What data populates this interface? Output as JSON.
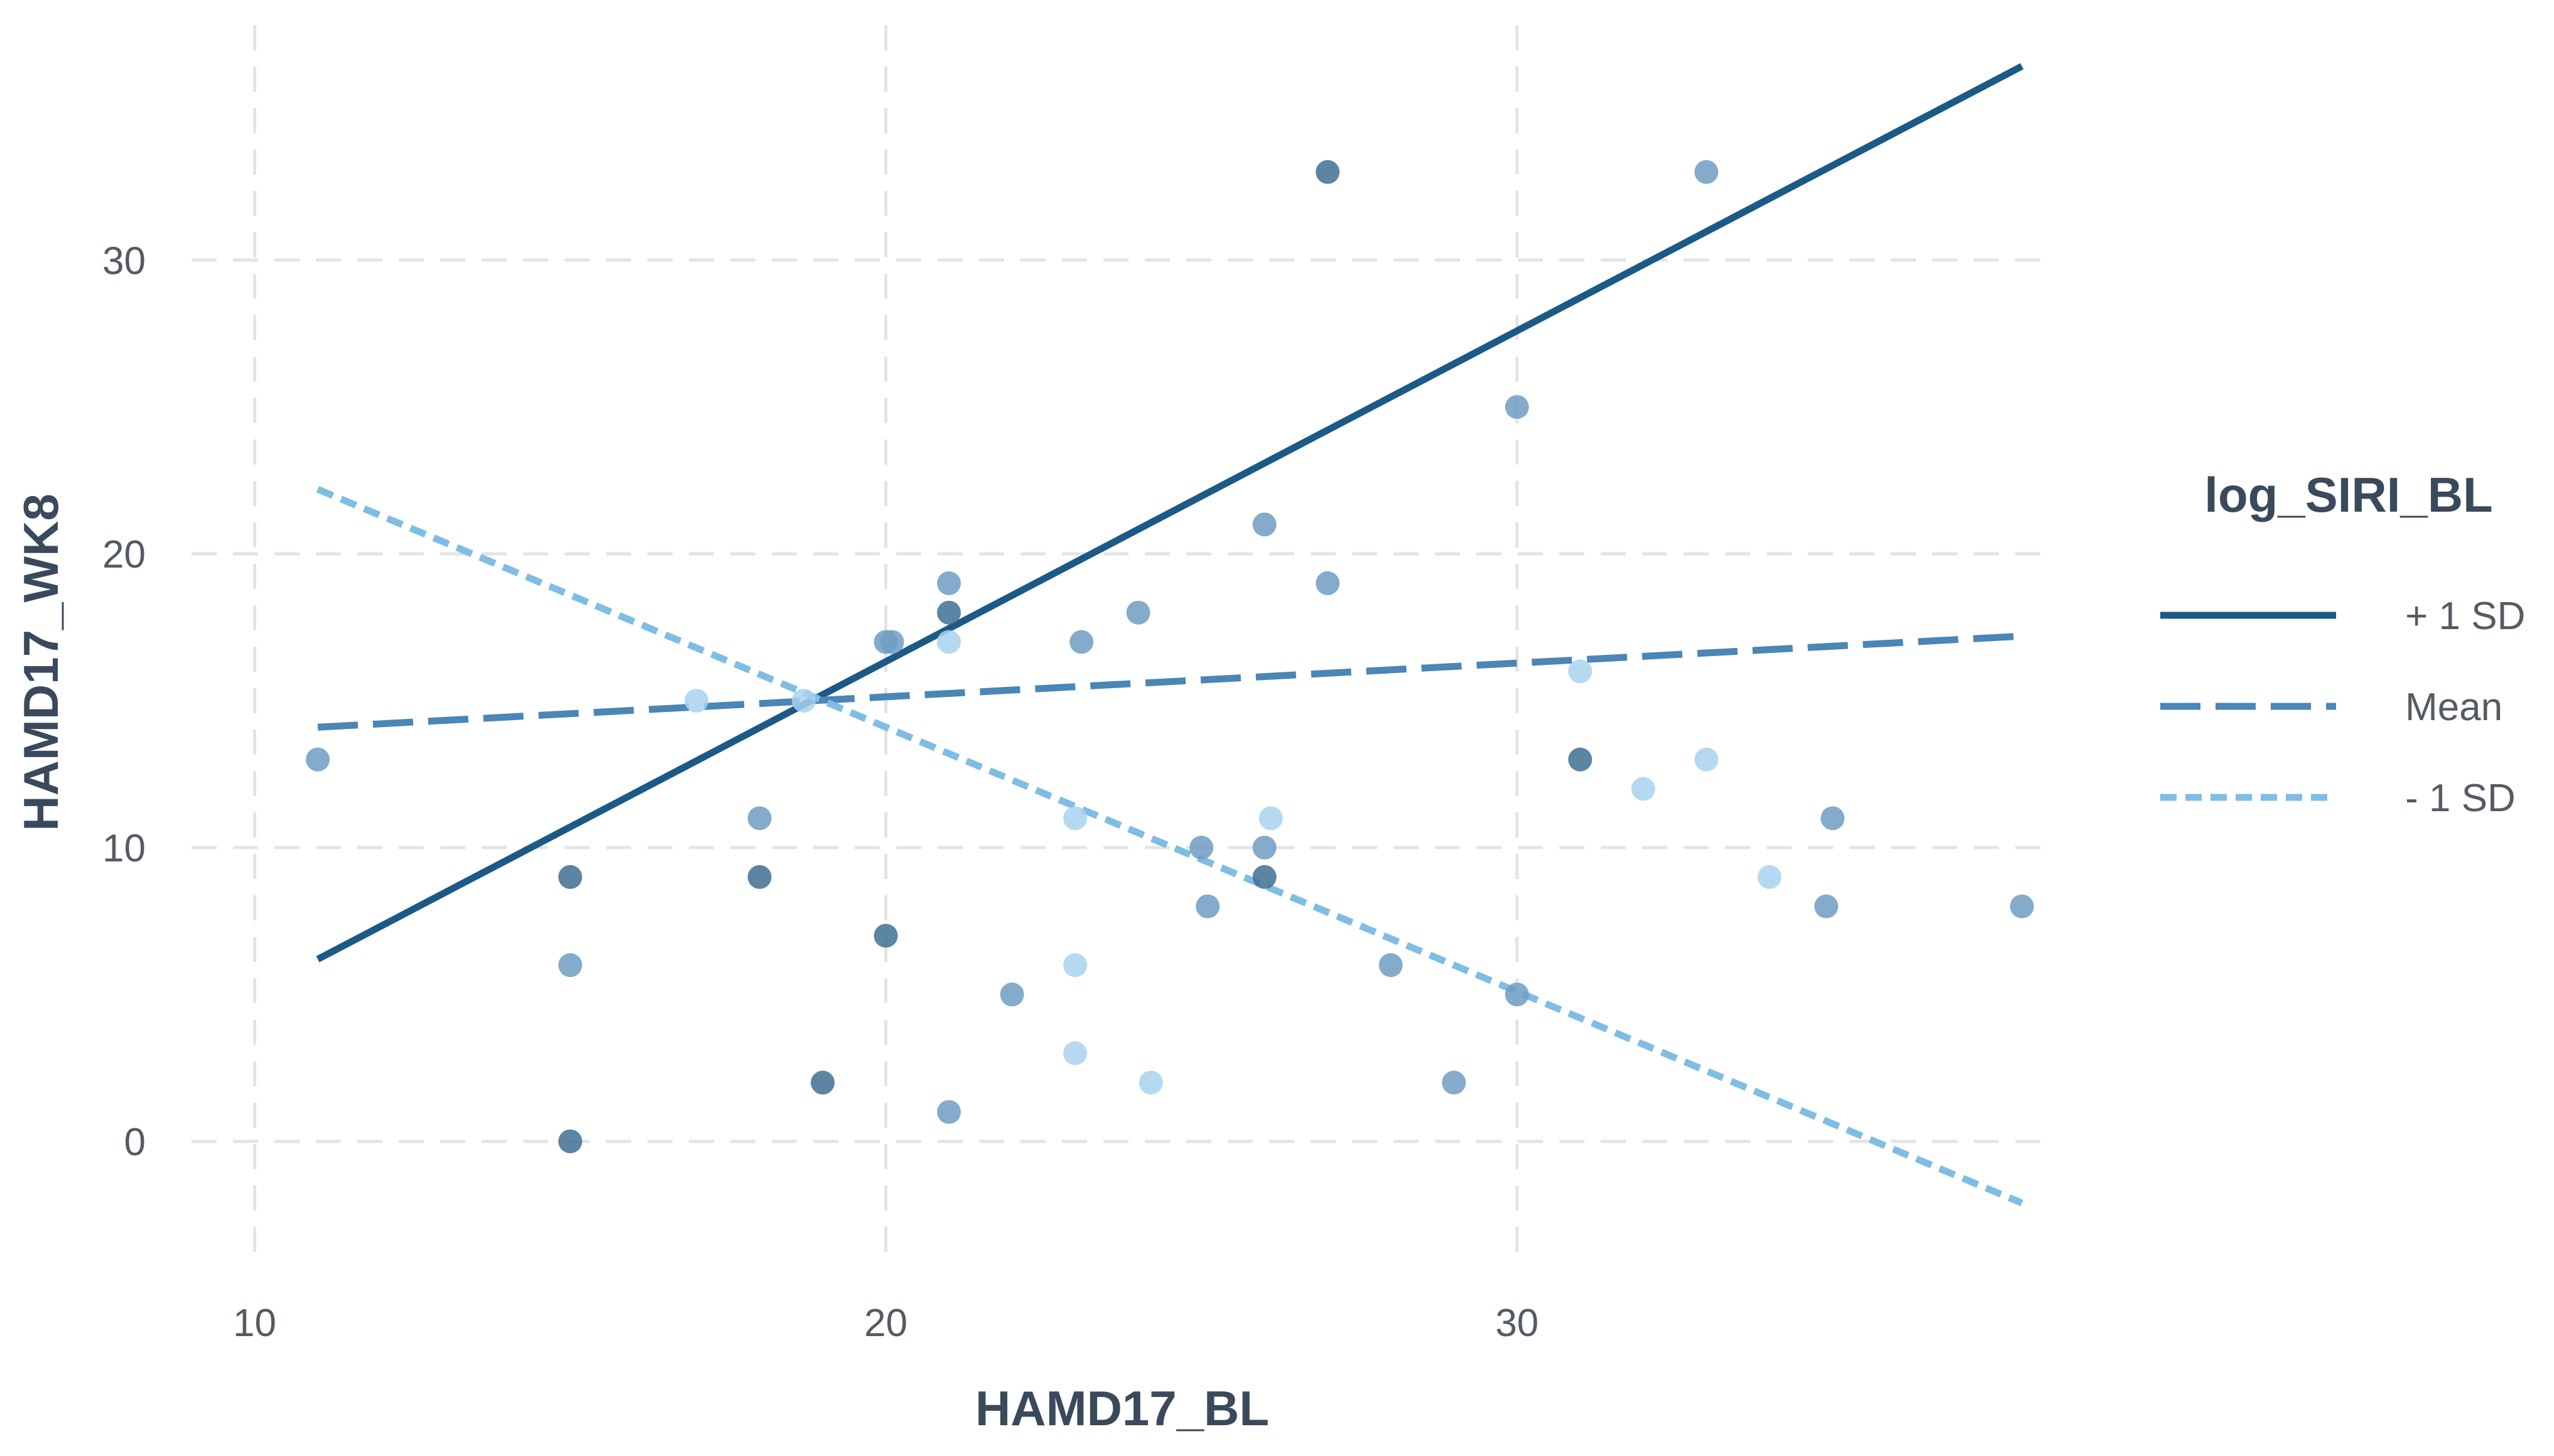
{
  "chart_data": {
    "type": "scatter",
    "title": "",
    "xlabel": "HAMD17_BL",
    "ylabel": "HAMD17_WK8",
    "xlim": [
      9,
      38.5
    ],
    "ylim": [
      -4,
      38
    ],
    "xticks": [
      10,
      20,
      30
    ],
    "yticks": [
      0,
      10,
      20,
      30
    ],
    "xticklabels": [
      "10",
      "20",
      "30"
    ],
    "yticklabels": [
      "0",
      "10",
      "20",
      "30"
    ],
    "grid": true,
    "grid_style": "dashed",
    "legend": {
      "title": "log_SIRI_BL",
      "position": "right",
      "entries": [
        "+ 1 SD",
        "Mean",
        "- 1 SD"
      ]
    },
    "colors": {
      "plus1sd": "#1b5a86",
      "mean": "#4a86b6",
      "minus1sd": "#7fbde4",
      "point_dark": "#3f6e93",
      "point_mid": "#6f9cc2",
      "point_light": "#a8d2ee",
      "grid": "#e4e4e4"
    },
    "lines": [
      {
        "name": "+ 1 SD",
        "style": "solid",
        "x": [
          11,
          38
        ],
        "y": [
          6.2,
          36.6
        ]
      },
      {
        "name": "Mean",
        "style": "dashed",
        "x": [
          11,
          38
        ],
        "y": [
          14.1,
          17.2
        ]
      },
      {
        "name": "- 1 SD",
        "style": "dotted",
        "x": [
          11,
          38
        ],
        "y": [
          22.2,
          -2.1
        ]
      }
    ],
    "points": [
      {
        "x": 11,
        "y": 13,
        "shade": "mid"
      },
      {
        "x": 15,
        "y": 9,
        "shade": "dark"
      },
      {
        "x": 15,
        "y": 6,
        "shade": "mid"
      },
      {
        "x": 15,
        "y": 0,
        "shade": "dark"
      },
      {
        "x": 17,
        "y": 15,
        "shade": "light"
      },
      {
        "x": 18,
        "y": 11,
        "shade": "mid"
      },
      {
        "x": 18,
        "y": 9,
        "shade": "dark"
      },
      {
        "x": 18.7,
        "y": 15,
        "shade": "light"
      },
      {
        "x": 19,
        "y": 2,
        "shade": "dark"
      },
      {
        "x": 20,
        "y": 17,
        "shade": "mid"
      },
      {
        "x": 20,
        "y": 7,
        "shade": "dark"
      },
      {
        "x": 20.1,
        "y": 17,
        "shade": "mid"
      },
      {
        "x": 21,
        "y": 19,
        "shade": "mid"
      },
      {
        "x": 21,
        "y": 18,
        "shade": "dark"
      },
      {
        "x": 21,
        "y": 17,
        "shade": "light"
      },
      {
        "x": 21,
        "y": 1,
        "shade": "mid"
      },
      {
        "x": 22,
        "y": 5,
        "shade": "mid"
      },
      {
        "x": 23,
        "y": 11,
        "shade": "light"
      },
      {
        "x": 23,
        "y": 6,
        "shade": "light"
      },
      {
        "x": 23,
        "y": 3,
        "shade": "light"
      },
      {
        "x": 23.1,
        "y": 17,
        "shade": "mid"
      },
      {
        "x": 24,
        "y": 18,
        "shade": "mid"
      },
      {
        "x": 24.2,
        "y": 2,
        "shade": "light"
      },
      {
        "x": 25,
        "y": 10,
        "shade": "mid"
      },
      {
        "x": 25.1,
        "y": 8,
        "shade": "mid"
      },
      {
        "x": 26,
        "y": 21,
        "shade": "mid"
      },
      {
        "x": 26,
        "y": 10,
        "shade": "mid"
      },
      {
        "x": 26,
        "y": 9,
        "shade": "dark"
      },
      {
        "x": 26.1,
        "y": 11,
        "shade": "light"
      },
      {
        "x": 27,
        "y": 33,
        "shade": "dark"
      },
      {
        "x": 27,
        "y": 19,
        "shade": "mid"
      },
      {
        "x": 28,
        "y": 6,
        "shade": "mid"
      },
      {
        "x": 29,
        "y": 2,
        "shade": "mid"
      },
      {
        "x": 30,
        "y": 25,
        "shade": "mid"
      },
      {
        "x": 30,
        "y": 5,
        "shade": "mid"
      },
      {
        "x": 31,
        "y": 16,
        "shade": "light"
      },
      {
        "x": 31,
        "y": 13,
        "shade": "dark"
      },
      {
        "x": 32,
        "y": 12,
        "shade": "light"
      },
      {
        "x": 33,
        "y": 33,
        "shade": "mid"
      },
      {
        "x": 33,
        "y": 13,
        "shade": "light"
      },
      {
        "x": 34,
        "y": 9,
        "shade": "light"
      },
      {
        "x": 35,
        "y": 11,
        "shade": "mid"
      },
      {
        "x": 34.9,
        "y": 8,
        "shade": "mid"
      },
      {
        "x": 38,
        "y": 8,
        "shade": "mid"
      }
    ]
  }
}
